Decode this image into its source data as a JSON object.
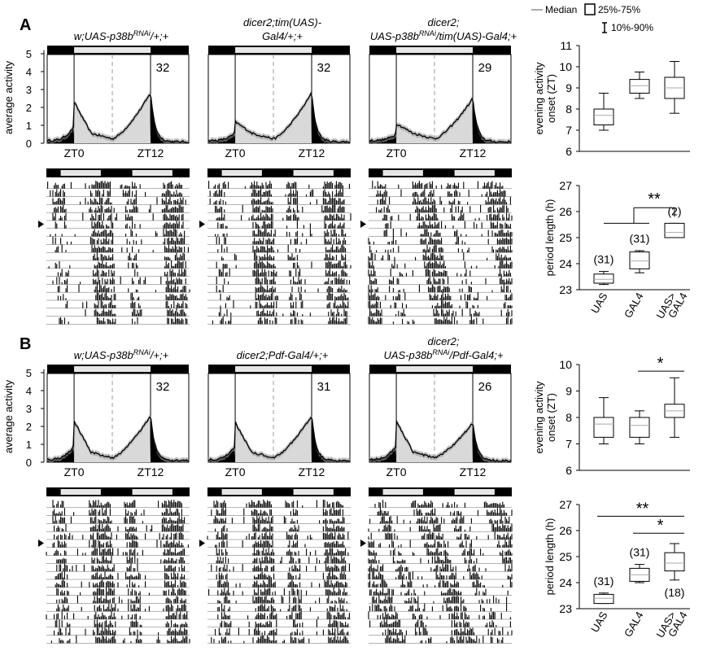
{
  "legend": {
    "median_label": "Median",
    "box_label": "25%-75%",
    "whisker_label": "10%-90%"
  },
  "panels": [
    {
      "letter": "A",
      "genotypes": [
        {
          "line1": "w;UAS-p38b",
          "sup": "RNAi",
          "line1_after": "/+;+",
          "line2": "",
          "n": "32"
        },
        {
          "line1": "dicer2;tim(UAS)-",
          "line2": "Gal4/+;+",
          "n": "32"
        },
        {
          "line1": "dicer2;",
          "line2_pre": "UAS-p38b",
          "sup": "RNAi",
          "line2_post": "/tim(UAS)-Gal4;+",
          "n": "29"
        }
      ],
      "activity_ylabel": "average activity",
      "activity_yticks": [
        "0",
        "1",
        "2",
        "3",
        "4",
        "5"
      ],
      "activity_xticks": [
        "ZT0",
        "ZT12"
      ],
      "onset_ylabel": [
        "evening activity",
        "onset (ZT)"
      ],
      "onset_yticks": [
        "6",
        "7",
        "8",
        "9",
        "10",
        "11"
      ],
      "period_ylabel": "period length (h)",
      "period_yticks": [
        "23",
        "24",
        "25",
        "26",
        "27"
      ],
      "categories": [
        "UAS",
        "GAL4",
        "UAS>GAL4"
      ],
      "significance": [
        "**"
      ]
    },
    {
      "letter": "B",
      "genotypes": [
        {
          "line1": "w;UAS-p38b",
          "sup": "RNAi",
          "line1_after": "/+;+",
          "line2": "",
          "n": "32"
        },
        {
          "line1": "dicer2;Pdf-Gal4/+;+",
          "line2": "",
          "n": "31"
        },
        {
          "line1": "dicer2;",
          "line2_pre": "UAS-p38b",
          "sup": "RNAi",
          "line2_post": "/Pdf-Gal4;+",
          "n": "26"
        }
      ],
      "activity_ylabel": "average activity",
      "activity_yticks": [
        "0",
        "1",
        "2",
        "3",
        "4",
        "5"
      ],
      "activity_xticks": [
        "ZT0",
        "ZT12"
      ],
      "onset_ylabel": [
        "evening activity",
        "onset (ZT)"
      ],
      "onset_yticks": [
        "6",
        "7",
        "8",
        "9",
        "10"
      ],
      "period_ylabel": "period length (h)",
      "period_yticks": [
        "23",
        "24",
        "25",
        "26",
        "27"
      ],
      "categories": [
        "UAS",
        "GAL4",
        "UAS>GAL4"
      ],
      "significance": [
        "*",
        "**",
        "*"
      ]
    }
  ],
  "chart_data": [
    {
      "type": "line",
      "panel": "A",
      "ylabel": "average activity",
      "ylim": [
        0,
        5.3
      ],
      "series": [
        {
          "n": "32",
          "morning_peak": 2.3,
          "evening_peak": 2.8
        },
        {
          "n": "32",
          "morning_peak": 1.2,
          "evening_peak": 2.8
        },
        {
          "n": "29",
          "morning_peak": 1.1,
          "evening_peak": 2.5
        }
      ]
    },
    {
      "type": "box",
      "panel": "A",
      "ylabel": "evening activity onset (ZT)",
      "ylim": [
        6,
        11
      ],
      "categories": [
        "UAS",
        "GAL4",
        "UAS>GAL4"
      ],
      "boxes": [
        {
          "p10": 7.0,
          "q1": 7.25,
          "median": 7.7,
          "q3": 8.0,
          "p90": 8.75
        },
        {
          "p10": 8.5,
          "q1": 8.75,
          "median": 9.1,
          "q3": 9.4,
          "p90": 9.75
        },
        {
          "p10": 7.8,
          "q1": 8.5,
          "median": 9.0,
          "q3": 9.5,
          "p90": 10.25
        }
      ]
    },
    {
      "type": "box",
      "panel": "A",
      "ylabel": "period length (h)",
      "ylim": [
        23,
        27
      ],
      "categories": [
        "UAS",
        "GAL4",
        "UAS>GAL4"
      ],
      "counts": [
        "(31)",
        "(31)",
        "(2)"
      ],
      "boxes": [
        {
          "p10": 23.2,
          "q1": 23.25,
          "median": 23.4,
          "q3": 23.6,
          "p90": 23.7
        },
        {
          "p10": 23.65,
          "q1": 23.8,
          "median": 24.1,
          "q3": 24.45,
          "p90": 24.5
        },
        {
          "p10": 25.0,
          "q1": 25.0,
          "median": 25.2,
          "q3": 25.55,
          "p90": 25.55
        }
      ],
      "significance": [
        {
          "label": "**",
          "from": [
            0,
            1
          ],
          "to": 2
        }
      ]
    },
    {
      "type": "line",
      "panel": "B",
      "ylabel": "average activity",
      "ylim": [
        0,
        5.3
      ],
      "series": [
        {
          "n": "32",
          "morning_peak": 2.3,
          "evening_peak": 2.6
        },
        {
          "n": "31",
          "morning_peak": 2.2,
          "evening_peak": 2.6
        },
        {
          "n": "26",
          "morning_peak": 2.3,
          "evening_peak": 2.2
        }
      ]
    },
    {
      "type": "box",
      "panel": "B",
      "ylabel": "evening activity onset (ZT)",
      "ylim": [
        6,
        10
      ],
      "categories": [
        "UAS",
        "GAL4",
        "UAS>GAL4"
      ],
      "boxes": [
        {
          "p10": 7.0,
          "q1": 7.25,
          "median": 7.75,
          "q3": 8.0,
          "p90": 8.75
        },
        {
          "p10": 7.0,
          "q1": 7.25,
          "median": 7.7,
          "q3": 8.0,
          "p90": 8.25
        },
        {
          "p10": 7.25,
          "q1": 8.0,
          "median": 8.25,
          "q3": 8.5,
          "p90": 9.5
        }
      ],
      "significance": [
        {
          "label": "*",
          "from": [
            1
          ],
          "to": 2
        }
      ]
    },
    {
      "type": "box",
      "panel": "B",
      "ylabel": "period length (h)",
      "ylim": [
        23,
        27
      ],
      "categories": [
        "UAS",
        "GAL4",
        "UAS>GAL4"
      ],
      "counts": [
        "(31)",
        "(31)",
        "(18)"
      ],
      "boxes": [
        {
          "p10": 23.2,
          "q1": 23.2,
          "median": 23.4,
          "q3": 23.55,
          "p90": 23.6
        },
        {
          "p10": 24.0,
          "q1": 24.05,
          "median": 24.3,
          "q3": 24.55,
          "p90": 24.7
        },
        {
          "p10": 24.1,
          "q1": 24.45,
          "median": 24.75,
          "q3": 25.15,
          "p90": 25.5
        }
      ],
      "significance": [
        {
          "label": "**",
          "from": [
            0
          ],
          "to": 2
        },
        {
          "label": "*",
          "from": [
            1
          ],
          "to": 2
        }
      ]
    }
  ]
}
